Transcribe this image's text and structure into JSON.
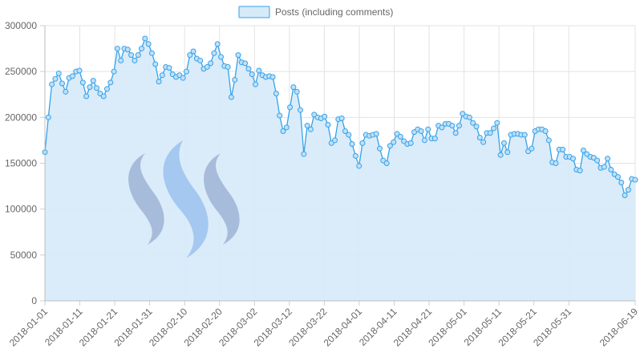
{
  "chart_data": {
    "type": "area",
    "series": [
      {
        "name": "Posts (including comments)",
        "line_color": "#36a2eb",
        "fill_color": "#d6eaf8",
        "x_start": "2018-01-01",
        "x_end": "2018-06-19",
        "values": [
          162000,
          200000,
          236000,
          242000,
          248000,
          237000,
          228000,
          243000,
          245000,
          250000,
          251000,
          238000,
          223000,
          233000,
          240000,
          232000,
          226000,
          223000,
          231000,
          238000,
          250000,
          275000,
          262000,
          275000,
          274000,
          268000,
          262000,
          268000,
          275000,
          286000,
          280000,
          270000,
          258000,
          239000,
          246000,
          255000,
          254000,
          247000,
          244000,
          246000,
          243000,
          250000,
          268000,
          272000,
          264000,
          262000,
          253000,
          255000,
          259000,
          270000,
          280000,
          266000,
          256000,
          255000,
          222000,
          241000,
          268000,
          260000,
          259000,
          253000,
          247000,
          236000,
          251000,
          246000,
          244000,
          245000,
          244000,
          226000,
          202000,
          185000,
          189000,
          211000,
          233000,
          228000,
          208000,
          160000,
          191000,
          187000,
          203000,
          200000,
          199000,
          201000,
          192000,
          172000,
          175000,
          198000,
          199000,
          185000,
          181000,
          171000,
          158000,
          147000,
          172000,
          181000,
          180000,
          181000,
          182000,
          166000,
          153000,
          150000,
          169000,
          173000,
          182000,
          179000,
          174000,
          171000,
          172000,
          184000,
          187000,
          185000,
          175000,
          187000,
          177000,
          177000,
          191000,
          189000,
          193000,
          193000,
          191000,
          183000,
          191000,
          204000,
          201000,
          200000,
          194000,
          190000,
          178000,
          173000,
          183000,
          183000,
          188000,
          194000,
          159000,
          172000,
          162000,
          181000,
          182000,
          182000,
          181000,
          181000,
          163000,
          166000,
          185000,
          187000,
          187000,
          185000,
          175000,
          151000,
          150000,
          165000,
          165000,
          157000,
          157000,
          155000,
          143000,
          142000,
          164000,
          160000,
          157000,
          156000,
          153000,
          145000,
          146000,
          155000,
          143000,
          138000,
          135000,
          129000,
          115000,
          121000,
          133000,
          132000
        ]
      }
    ],
    "x_tick_labels": [
      "2018-01-01",
      "2018-01-11",
      "2018-01-21",
      "2018-01-31",
      "2018-02-10",
      "2018-02-20",
      "2018-03-02",
      "2018-03-12",
      "2018-03-22",
      "2018-04-01",
      "2018-04-11",
      "2018-04-21",
      "2018-05-01",
      "2018-05-11",
      "2018-05-21",
      "2018-05-31",
      "2018-06-19"
    ],
    "y_ticks": [
      0,
      50000,
      100000,
      150000,
      200000,
      250000,
      300000
    ],
    "y_tick_labels": [
      "0",
      "50000",
      "100000",
      "150000",
      "200000",
      "250000",
      "300000"
    ],
    "ylim": [
      0,
      300000
    ],
    "grid": true,
    "legend_position": "top-center",
    "watermark": "steem-logo"
  }
}
